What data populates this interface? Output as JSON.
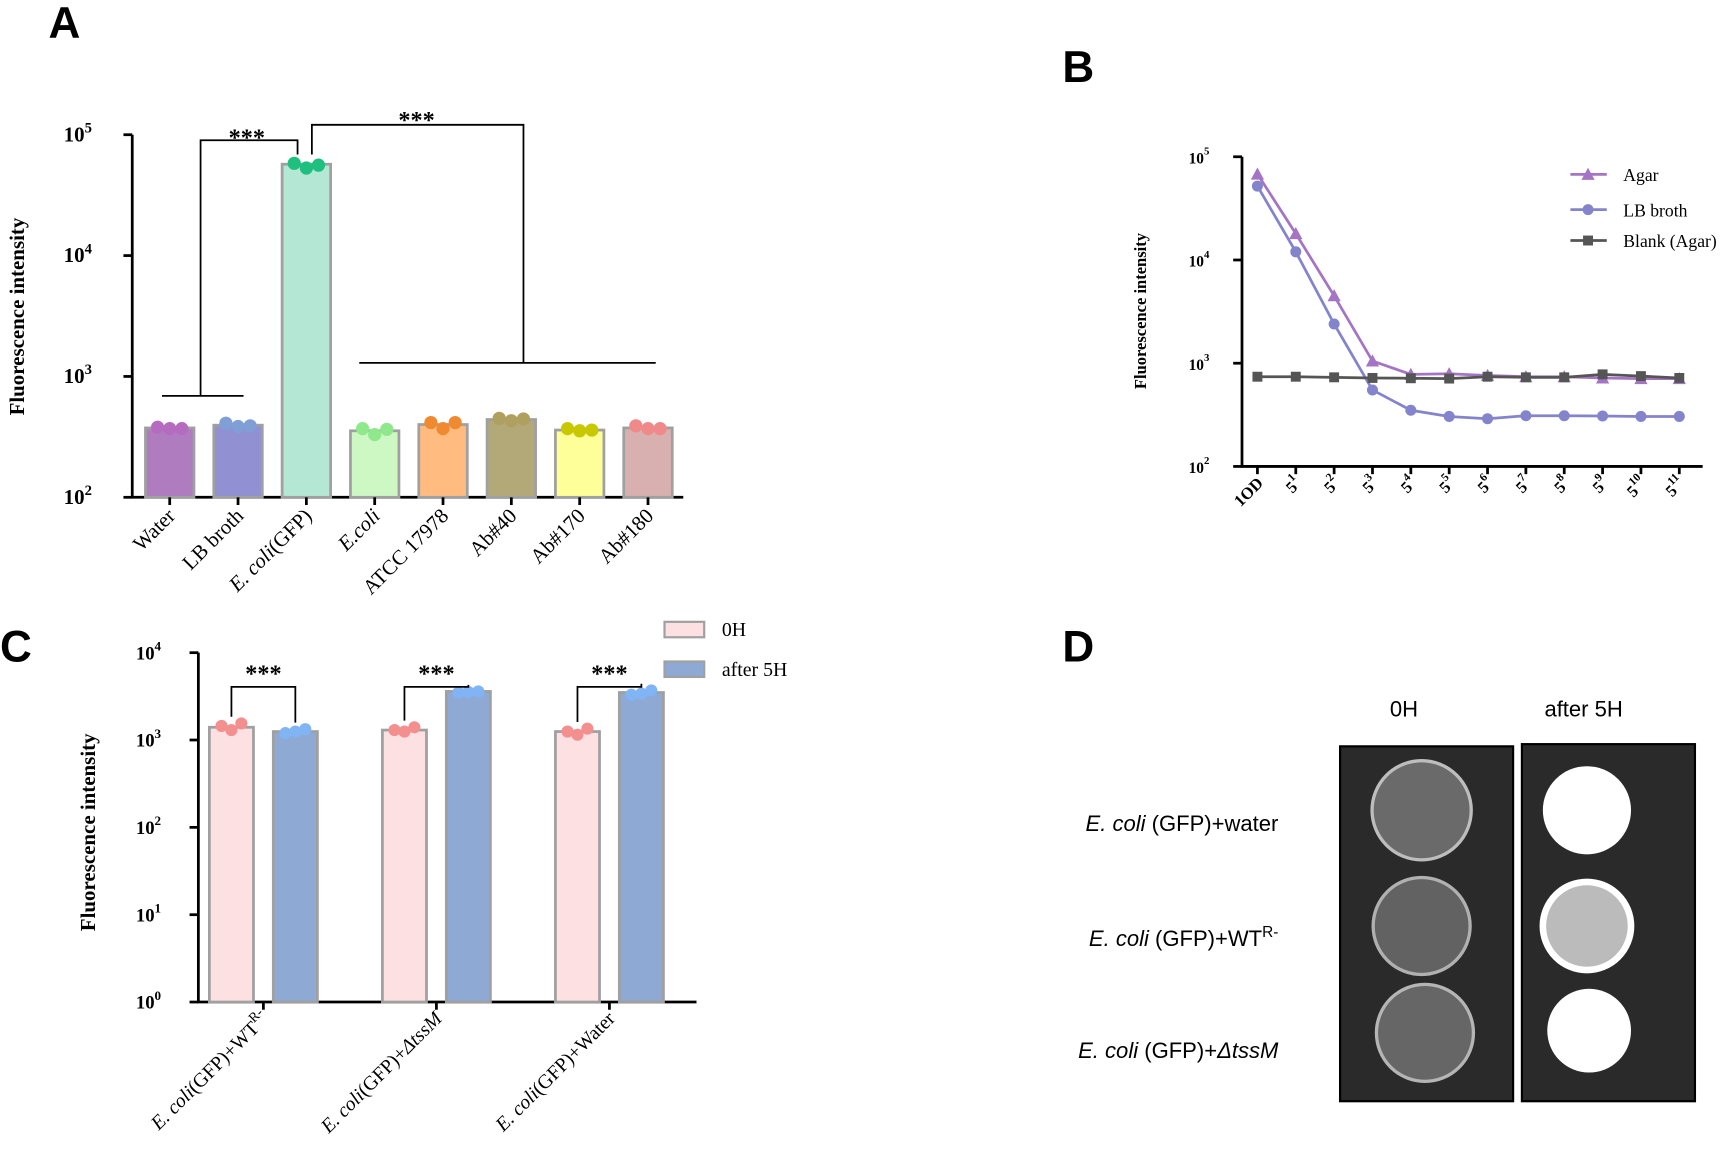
{
  "chart_data": [
    {
      "panel": "A",
      "type": "bar",
      "scale": "log",
      "y_label": "Fluorescence intensity",
      "ylim": [
        100,
        100000
      ],
      "yticks": [
        {
          "value": 100,
          "label": "10",
          "exponent": "2"
        },
        {
          "value": 1000,
          "label": "10",
          "exponent": "3"
        },
        {
          "value": 10000,
          "label": "10",
          "exponent": "4"
        },
        {
          "value": 100000,
          "label": "10",
          "exponent": "5"
        }
      ],
      "categories": [
        [
          {
            "text": "Water"
          }
        ],
        [
          {
            "text": "LB broth"
          }
        ],
        [
          {
            "text": "E. coli",
            "style": "italic"
          },
          {
            "text": "(GFP)"
          }
        ],
        [
          {
            "text": "E.coli",
            "style": "italic"
          }
        ],
        [
          {
            "text": "ATCC 17978"
          }
        ],
        [
          {
            "text": "Ab#40"
          }
        ],
        [
          {
            "text": "Ab#170"
          }
        ],
        [
          {
            "text": "Ab#180"
          }
        ]
      ],
      "values": [
        375,
        395,
        57000,
        355,
        400,
        440,
        360,
        375
      ],
      "points": [
        [
          380,
          370,
          370
        ],
        [
          410,
          385,
          390
        ],
        [
          58000,
          53000,
          56000
        ],
        [
          370,
          330,
          365
        ],
        [
          415,
          370,
          415
        ],
        [
          450,
          430,
          445
        ],
        [
          370,
          355,
          360
        ],
        [
          390,
          370,
          370
        ]
      ],
      "colors": [
        "#b07cc0",
        "#9090d2",
        "#b4e8d4",
        "#cdf8c4",
        "#ffbb80",
        "#b3a878",
        "#ffff9a",
        "#d9b0b0"
      ],
      "point_colors": [
        "#b56cc0",
        "#7f9fd6",
        "#1fbf7f",
        "#8fe88c",
        "#f08a30",
        "#b0a060",
        "#c8c800",
        "#f08a8a"
      ],
      "annotations": [
        "***",
        "***"
      ]
    },
    {
      "panel": "B",
      "type": "line",
      "scale": "log",
      "y_label": "Fluorescence intensity",
      "ylim": [
        100,
        100000
      ],
      "yticks": [
        {
          "value": 100,
          "label": "10",
          "exponent": "2"
        },
        {
          "value": 1000,
          "label": "10",
          "exponent": "3"
        },
        {
          "value": 10000,
          "label": "10",
          "exponent": "4"
        },
        {
          "value": 100000,
          "label": "10",
          "exponent": "5"
        }
      ],
      "categories": [
        [
          {
            "text": "1OD"
          }
        ],
        [
          {
            "text": "5"
          },
          {
            "text": "1",
            "style": "sup"
          }
        ],
        [
          {
            "text": "5"
          },
          {
            "text": "2",
            "style": "sup"
          }
        ],
        [
          {
            "text": "5"
          },
          {
            "text": "3",
            "style": "sup"
          }
        ],
        [
          {
            "text": "5"
          },
          {
            "text": "4",
            "style": "sup"
          }
        ],
        [
          {
            "text": "5"
          },
          {
            "text": "5",
            "style": "sup"
          }
        ],
        [
          {
            "text": "5"
          },
          {
            "text": "6",
            "style": "sup"
          }
        ],
        [
          {
            "text": "5"
          },
          {
            "text": "7",
            "style": "sup"
          }
        ],
        [
          {
            "text": "5"
          },
          {
            "text": "8",
            "style": "sup"
          }
        ],
        [
          {
            "text": "5"
          },
          {
            "text": "9",
            "style": "sup"
          }
        ],
        [
          {
            "text": "5"
          },
          {
            "text": "10",
            "style": "sup"
          }
        ],
        [
          {
            "text": "5"
          },
          {
            "text": "11",
            "style": "sup"
          }
        ]
      ],
      "series": [
        {
          "name": "Agar",
          "color": "#a574c4",
          "marker": "triangle",
          "values": [
            68000,
            18000,
            4500,
            1050,
            780,
            790,
            760,
            740,
            740,
            720,
            710,
            710
          ]
        },
        {
          "name": "LB broth",
          "color": "#8484cc",
          "marker": "circle",
          "values": [
            52000,
            12000,
            2400,
            550,
            350,
            305,
            290,
            310,
            310,
            308,
            305,
            305
          ]
        },
        {
          "name": "Blank (Agar)",
          "color": "#555555",
          "marker": "square",
          "values": [
            740,
            740,
            730,
            720,
            715,
            710,
            740,
            730,
            730,
            780,
            750,
            720
          ]
        }
      ]
    },
    {
      "panel": "C",
      "type": "grouped_bar",
      "scale": "log",
      "y_label": "Fluorescence intensity",
      "ylim": [
        1,
        10000
      ],
      "yticks": [
        {
          "value": 1,
          "label": "10",
          "exponent": "0"
        },
        {
          "value": 10,
          "label": "10",
          "exponent": "1"
        },
        {
          "value": 100,
          "label": "10",
          "exponent": "2"
        },
        {
          "value": 1000,
          "label": "10",
          "exponent": "3"
        },
        {
          "value": 10000,
          "label": "10",
          "exponent": "4"
        }
      ],
      "categories": [
        [
          {
            "text": "E. coli",
            "style": "italic"
          },
          {
            "text": "(GFP)+WT"
          },
          {
            "text": "R-",
            "style": "sup"
          }
        ],
        [
          {
            "text": "E. coli",
            "style": "italic"
          },
          {
            "text": "(GFP)+"
          },
          {
            "text": "ΔtssM",
            "style": "italic"
          }
        ],
        [
          {
            "text": "E. coli",
            "style": "italic"
          },
          {
            "text": "(GFP)+Water"
          }
        ]
      ],
      "series": [
        {
          "name": "0H",
          "color": "#fde0e1",
          "point_color": "#f48f8f",
          "values": [
            1400,
            1300,
            1250
          ],
          "points": [
            [
              1450,
              1300,
              1550
            ],
            [
              1300,
              1250,
              1400
            ],
            [
              1250,
              1150,
              1350
            ]
          ]
        },
        {
          "name": "after 5H",
          "color": "#8eaad4",
          "point_color": "#80b4f4",
          "values": [
            1250,
            3600,
            3500
          ],
          "points": [
            [
              1200,
              1250,
              1330
            ],
            [
              3500,
              3550,
              3600
            ],
            [
              3300,
              3400,
              3700
            ]
          ]
        }
      ],
      "annotations": [
        "***",
        "***",
        "***"
      ]
    }
  ],
  "image_panel": {
    "panel": "D",
    "columns": [
      "0H",
      "after 5H"
    ],
    "rows": [
      [
        {
          "text": "E. coli",
          "style": "italic"
        },
        {
          "text": " (GFP)+water"
        }
      ],
      [
        {
          "text": "E. coli",
          "style": "italic"
        },
        {
          "text": " (GFP)+WT"
        },
        {
          "text": "R-",
          "style": "sup"
        }
      ],
      [
        {
          "text": "E. coli",
          "style": "italic"
        },
        {
          "text": " (GFP)+"
        },
        {
          "text": "ΔtssM",
          "style": "italic"
        }
      ]
    ]
  }
}
